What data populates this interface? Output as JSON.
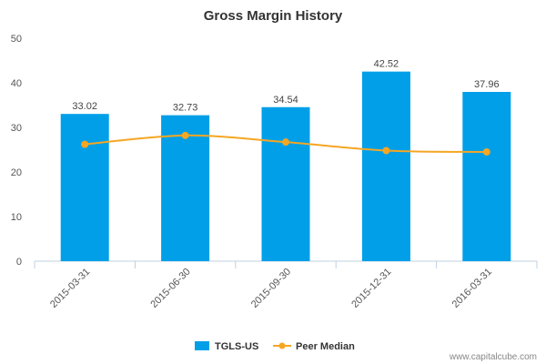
{
  "chart_data": {
    "type": "bar",
    "title": "Gross Margin History",
    "categories": [
      "2015-03-31",
      "2015-06-30",
      "2015-09-30",
      "2015-12-31",
      "2016-03-31"
    ],
    "series": [
      {
        "name": "TGLS-US",
        "type": "bar",
        "values": [
          33.02,
          32.73,
          34.54,
          42.52,
          37.96
        ],
        "data_labels": [
          "33.02",
          "32.73",
          "34.54",
          "42.52",
          "37.96"
        ],
        "color": "#009fe8"
      },
      {
        "name": "Peer Median",
        "type": "line",
        "values": [
          26.2,
          28.2,
          26.7,
          24.8,
          24.5
        ],
        "color": "#f5a623"
      }
    ],
    "ylim": [
      0,
      50
    ],
    "yticks": [
      "0",
      "10",
      "20",
      "30",
      "40",
      "50"
    ],
    "legend_position": "bottom-center",
    "grid": false
  },
  "credit": "www.capitalcube.com"
}
